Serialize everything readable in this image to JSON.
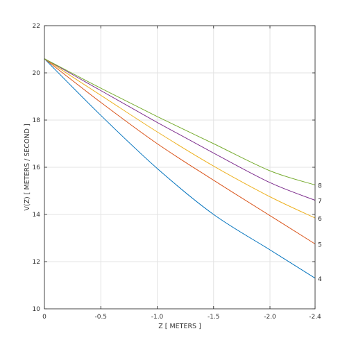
{
  "chart_data": {
    "type": "line",
    "title": "",
    "xlabel": "Z [ METERS ]",
    "ylabel": "V(Z) [ METERS / SECOND ]",
    "xlim": [
      0,
      -2.4
    ],
    "ylim": [
      10,
      22
    ],
    "x_ticks": [
      0,
      -0.5,
      -1.0,
      -1.5,
      -2.0,
      -2.4
    ],
    "x_tick_labels": [
      "0",
      "-0.5",
      "-1.0",
      "-1.5",
      "-2.0",
      "-2.4"
    ],
    "y_ticks": [
      10,
      12,
      14,
      16,
      18,
      20,
      22
    ],
    "y_tick_labels": [
      "10",
      "12",
      "14",
      "16",
      "18",
      "20",
      "22"
    ],
    "grid": true,
    "legend": "none",
    "x": [
      0,
      -0.5,
      -1.0,
      -1.5,
      -2.0,
      -2.4
    ],
    "series": [
      {
        "name": "4",
        "color": "#0072bd",
        "values": [
          20.6,
          18.2,
          15.95,
          14.0,
          12.5,
          11.3
        ]
      },
      {
        "name": "5",
        "color": "#d95319",
        "values": [
          20.6,
          18.75,
          17.0,
          15.45,
          13.95,
          12.75
        ]
      },
      {
        "name": "6",
        "color": "#edb120",
        "values": [
          20.6,
          19.05,
          17.5,
          16.05,
          14.75,
          13.85
        ]
      },
      {
        "name": "7",
        "color": "#7e2f8e",
        "values": [
          20.6,
          19.25,
          17.9,
          16.6,
          15.35,
          14.6
        ]
      },
      {
        "name": "8",
        "color": "#77ac30",
        "values": [
          20.6,
          19.35,
          18.15,
          17.0,
          15.85,
          15.25
        ]
      }
    ]
  }
}
